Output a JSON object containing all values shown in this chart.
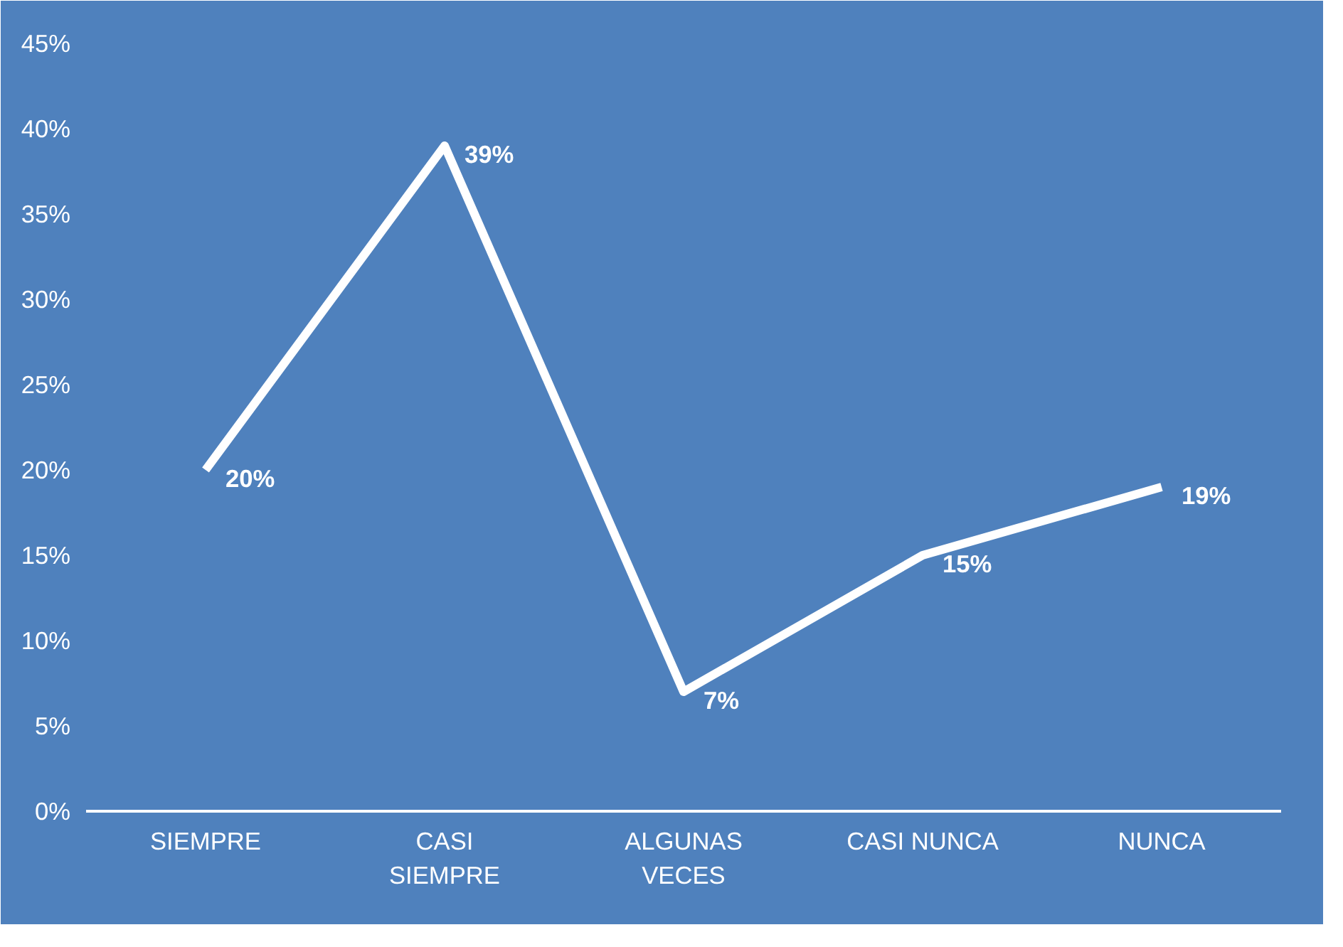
{
  "chart_data": {
    "type": "line",
    "categories": [
      "SIEMPRE",
      "CASI SIEMPRE",
      "ALGUNAS VECES",
      "CASI NUNCA",
      "NUNCA"
    ],
    "series": [
      {
        "color": "#ffffff",
        "values": [
          20,
          39,
          7,
          15,
          19
        ],
        "value_labels": [
          "20%",
          "39%",
          "7%",
          "15%",
          "19%"
        ]
      }
    ],
    "ylim": [
      0,
      45
    ],
    "yticks": [
      {
        "value": 0,
        "label": "0%"
      },
      {
        "value": 5,
        "label": "5%"
      },
      {
        "value": 10,
        "label": "10%"
      },
      {
        "value": 15,
        "label": "15%"
      },
      {
        "value": 20,
        "label": "20%"
      },
      {
        "value": 25,
        "label": "25%"
      },
      {
        "value": 30,
        "label": "30%"
      },
      {
        "value": 35,
        "label": "35%"
      },
      {
        "value": 40,
        "label": "40%"
      },
      {
        "value": 45,
        "label": "45%"
      }
    ],
    "grid": false,
    "marker": "none",
    "line_style": "solid"
  }
}
